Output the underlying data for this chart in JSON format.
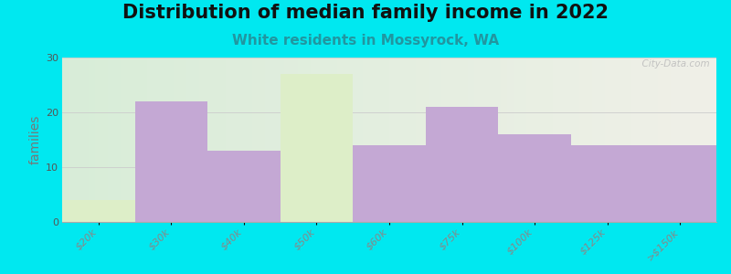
{
  "title": "Distribution of median family income in 2022",
  "subtitle": "White residents in Mossyrock, WA",
  "ylabel": "families",
  "categories": [
    "$20k",
    "$30k",
    "$40k",
    "$50k",
    "$60k",
    "$75k",
    "$100k",
    "$125k",
    ">$150k"
  ],
  "values": [
    4,
    22,
    13,
    27,
    14,
    21,
    16,
    14,
    14
  ],
  "bar_color": "#c4a8d4",
  "highlight_color": "#ddeec8",
  "highlight_indices": [
    0,
    3
  ],
  "ylim": [
    0,
    30
  ],
  "yticks": [
    0,
    10,
    20,
    30
  ],
  "background_outer": "#00e8f0",
  "bg_left_color": "#d8edd8",
  "bg_right_color": "#f0f0e8",
  "title_fontsize": 15,
  "subtitle_fontsize": 11,
  "subtitle_color": "#2196a0",
  "ylabel_fontsize": 10,
  "tick_label_fontsize": 8,
  "watermark_text": "  City-Data.com"
}
